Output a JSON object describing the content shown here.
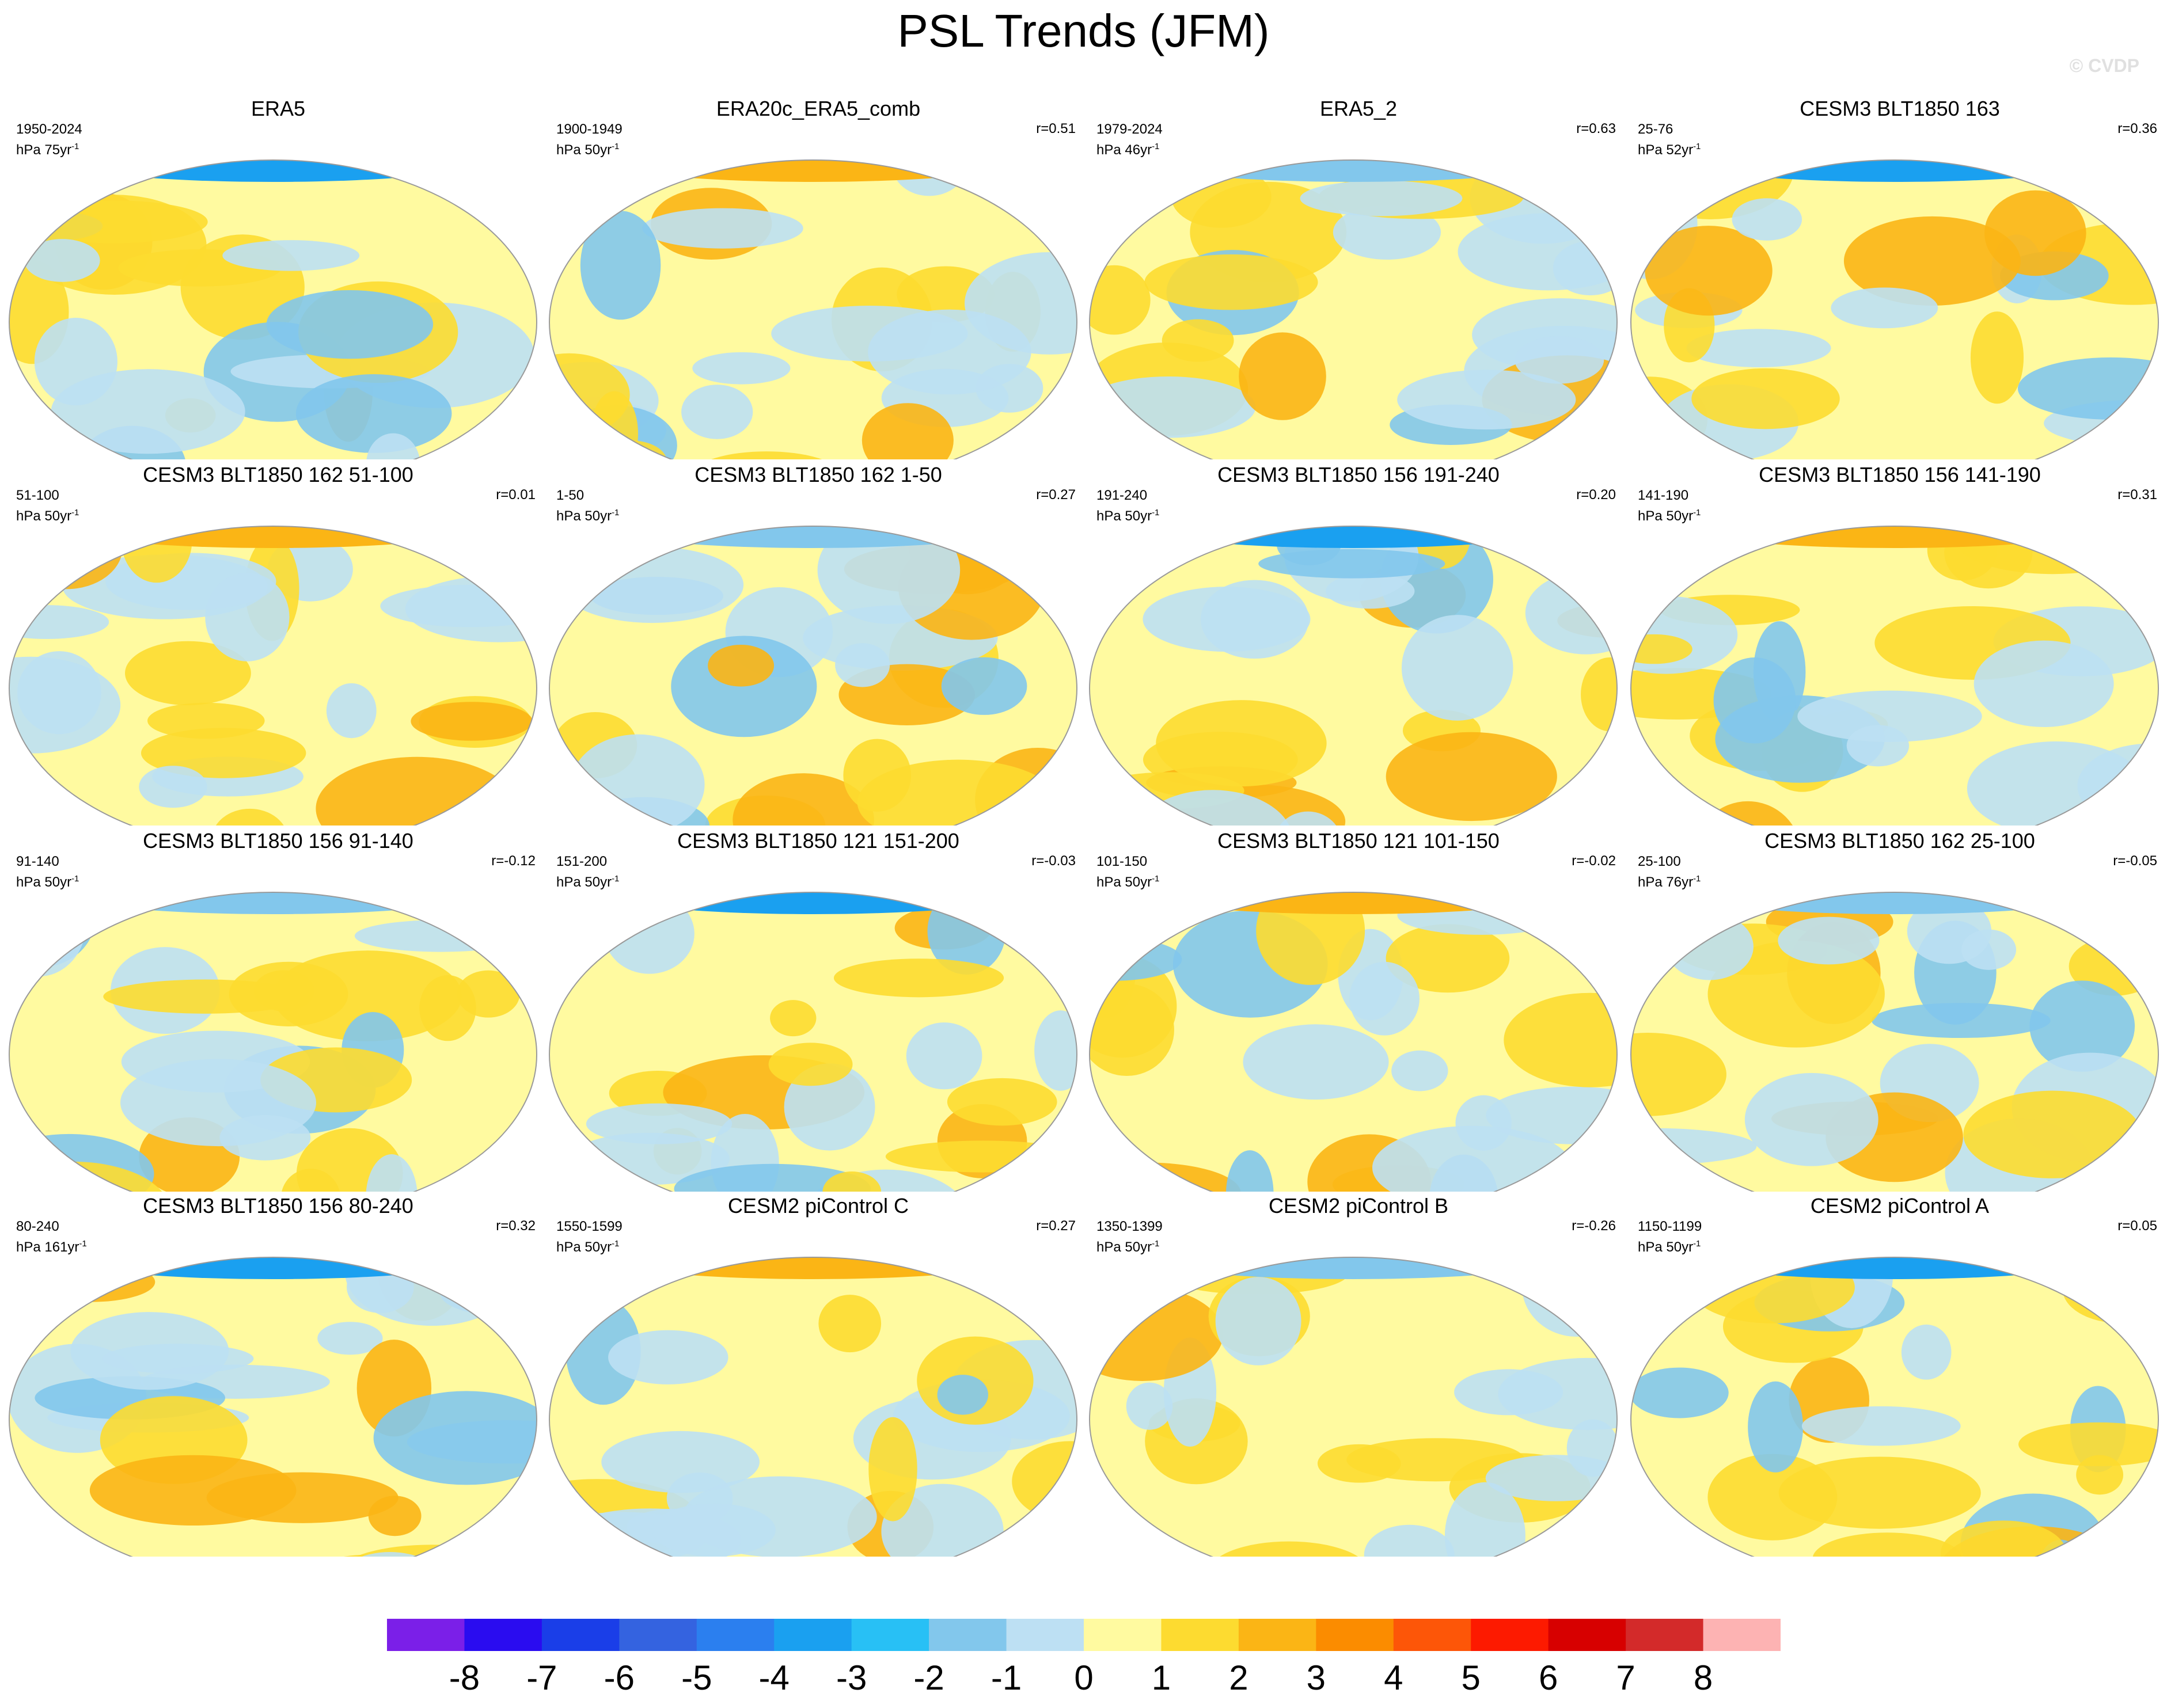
{
  "title": "PSL Trends (JFM)",
  "watermark": "© CVDP",
  "panels": [
    {
      "title": "ERA5",
      "period": "1950-2024",
      "unit": "hPa 75yr",
      "r": ""
    },
    {
      "title": "ERA20c_ERA5_comb",
      "period": "1900-1949",
      "unit": "hPa 50yr",
      "r": "r=0.51"
    },
    {
      "title": "ERA5_2",
      "period": "1979-2024",
      "unit": "hPa 46yr",
      "r": "r=0.63"
    },
    {
      "title": "CESM3 BLT1850 163",
      "period": "25-76",
      "unit": "hPa 52yr",
      "r": "r=0.36"
    },
    {
      "title": "CESM3 BLT1850 162 51-100",
      "period": "51-100",
      "unit": "hPa 50yr",
      "r": "r=0.01"
    },
    {
      "title": "CESM3 BLT1850 162 1-50",
      "period": "1-50",
      "unit": "hPa 50yr",
      "r": "r=0.27"
    },
    {
      "title": "CESM3 BLT1850 156 191-240",
      "period": "191-240",
      "unit": "hPa 50yr",
      "r": "r=0.20"
    },
    {
      "title": "CESM3 BLT1850 156 141-190",
      "period": "141-190",
      "unit": "hPa 50yr",
      "r": "r=0.31"
    },
    {
      "title": "CESM3 BLT1850 156 91-140",
      "period": "91-140",
      "unit": "hPa 50yr",
      "r": "r=-0.12"
    },
    {
      "title": "CESM3 BLT1850 121 151-200",
      "period": "151-200",
      "unit": "hPa 50yr",
      "r": "r=-0.03"
    },
    {
      "title": "CESM3 BLT1850 121 101-150",
      "period": "101-150",
      "unit": "hPa 50yr",
      "r": "r=-0.02"
    },
    {
      "title": "CESM3 BLT1850 162 25-100",
      "period": "25-100",
      "unit": "hPa 76yr",
      "r": "r=-0.05"
    },
    {
      "title": "CESM3 BLT1850 156 80-240",
      "period": "80-240",
      "unit": "hPa 161yr",
      "r": "r=0.32"
    },
    {
      "title": "CESM2 piControl C",
      "period": "1550-1599",
      "unit": "hPa 50yr",
      "r": "r=0.27"
    },
    {
      "title": "CESM2 piControl B",
      "period": "1350-1399",
      "unit": "hPa 50yr",
      "r": "r=-0.26"
    },
    {
      "title": "CESM2 piControl A",
      "period": "1150-1199",
      "unit": "hPa 50yr",
      "r": "r=0.05"
    }
  ],
  "unit_exponent": "-1",
  "colorbar": {
    "labels": [
      "-8",
      "-7",
      "-6",
      "-5",
      "-4",
      "-3",
      "-2",
      "-1",
      "0",
      "1",
      "2",
      "3",
      "4",
      "5",
      "6",
      "7",
      "8"
    ],
    "colors": [
      "#7b1fe8",
      "#2a0cf0",
      "#1a3ee8",
      "#3463e0",
      "#2b7fef",
      "#1aa0f0",
      "#28c0f5",
      "#82c7ec",
      "#bde0f3",
      "#fffaa0",
      "#fddb30",
      "#fbb515",
      "#fb8c00",
      "#fd5608",
      "#fd1a00",
      "#d70000",
      "#d32a2a",
      "#fdb3b3"
    ]
  }
}
